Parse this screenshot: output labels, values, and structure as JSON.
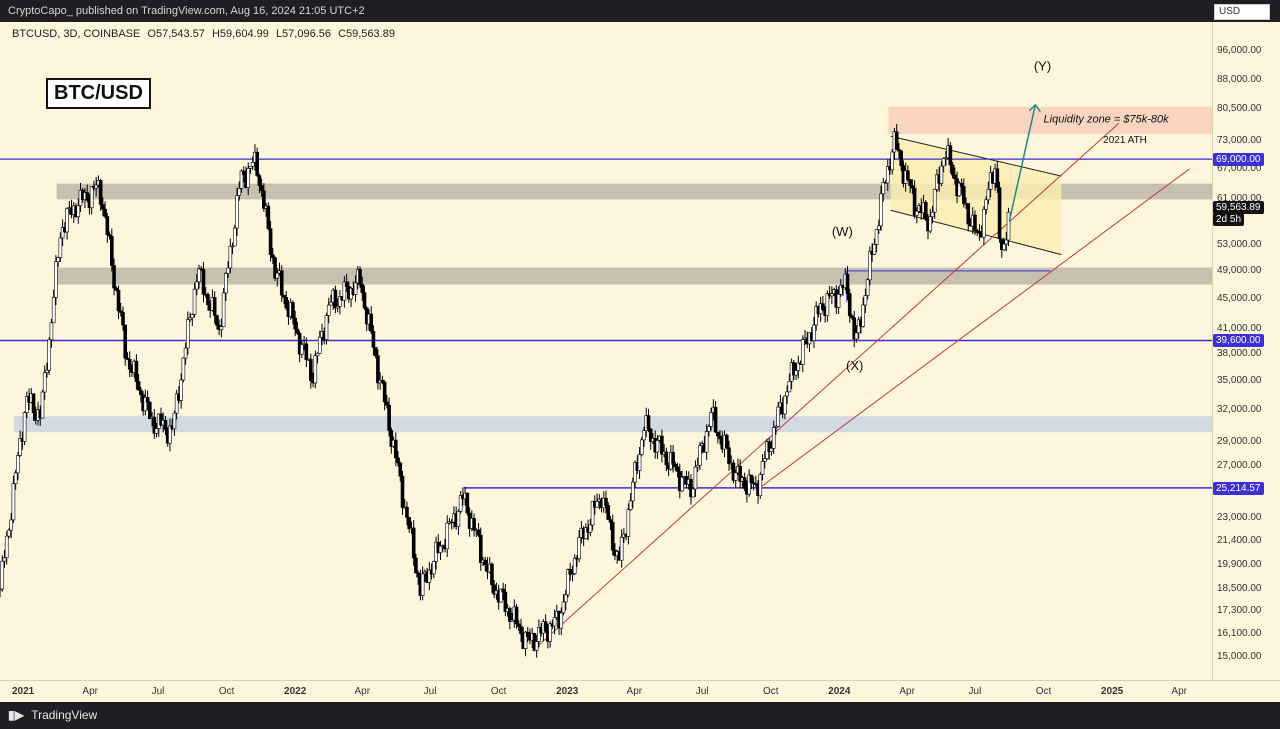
{
  "header": {
    "publisher": "CryptoCapo_ published on TradingView.com, Aug 16, 2024 21:05 UTC+2"
  },
  "footer": {
    "brand": "TradingView"
  },
  "chart": {
    "symbol_line": "BTCUSD, 3D, COINBASE",
    "open": "O57,543.57",
    "high": "H59,604.99",
    "low": "L57,096.56",
    "close": "C59,563.89",
    "title": "BTC/USD",
    "currency": "USD",
    "ath_label": "2021 ATH",
    "zone_label": "Liquidity zone = $75k-80k",
    "wave_w": "(W)",
    "wave_x": "(X)",
    "wave_y": "(Y)",
    "countdown": "2d 5h"
  },
  "price_ticks": [
    "96,000.00",
    "88,000.00",
    "80,500.00",
    "73,000.00",
    "67,000.00",
    "61,000.00",
    "53,000.00",
    "49,000.00",
    "45,000.00",
    "41,000.00",
    "38,000.00",
    "35,000.00",
    "32,000.00",
    "29,000.00",
    "27,000.00",
    "23,000.00",
    "21,400.00",
    "19,900.00",
    "18,500.00",
    "17,300.00",
    "16,100.00",
    "15,000.00"
  ],
  "level_tags": {
    "ath": "69,000.00",
    "mid": "39,600.00",
    "low": "25,214.57",
    "last": "59,563.89"
  },
  "time_ticks": [
    {
      "label": "2021",
      "bold": true
    },
    {
      "label": "Apr",
      "bold": false
    },
    {
      "label": "Jul",
      "bold": false
    },
    {
      "label": "Oct",
      "bold": false
    },
    {
      "label": "2022",
      "bold": true
    },
    {
      "label": "Apr",
      "bold": false
    },
    {
      "label": "Jul",
      "bold": false
    },
    {
      "label": "Oct",
      "bold": false
    },
    {
      "label": "2023",
      "bold": true
    },
    {
      "label": "Apr",
      "bold": false
    },
    {
      "label": "Jul",
      "bold": false
    },
    {
      "label": "Oct",
      "bold": false
    },
    {
      "label": "2024",
      "bold": true
    },
    {
      "label": "Apr",
      "bold": false
    },
    {
      "label": "Jul",
      "bold": false
    },
    {
      "label": "Oct",
      "bold": false
    },
    {
      "label": "2025",
      "bold": true
    },
    {
      "label": "Apr",
      "bold": false
    }
  ],
  "colors": {
    "background": "#fdf5dc",
    "level_line": "#3b2fd6",
    "trendline": "#c0393b",
    "supply_zone": "#b8b3a3",
    "demand_zone": "#c7d3e6",
    "liquidity_zone": "#f7c9b8",
    "channel_fill": "#fbeeb0",
    "projection_arrow": "#1f8a80",
    "candle_up": "#ffffff",
    "candle_down": "#000000"
  },
  "chart_data": {
    "type": "candlestick",
    "symbol": "BTCUSD",
    "timeframe": "3D",
    "exchange": "COINBASE",
    "y_scale": "log",
    "ylim": [
      14000,
      105000
    ],
    "xlim": [
      "2020-12-01",
      "2025-05-15"
    ],
    "last_close": 59563.89,
    "price_path": [
      {
        "date": "2020-12-01",
        "price": 18500
      },
      {
        "date": "2021-01-05",
        "price": 33000
      },
      {
        "date": "2021-01-25",
        "price": 31500
      },
      {
        "date": "2021-02-21",
        "price": 56000
      },
      {
        "date": "2021-03-13",
        "price": 60000
      },
      {
        "date": "2021-04-14",
        "price": 63500
      },
      {
        "date": "2021-05-19",
        "price": 38000
      },
      {
        "date": "2021-06-22",
        "price": 31000
      },
      {
        "date": "2021-07-20",
        "price": 30000
      },
      {
        "date": "2021-08-23",
        "price": 49000
      },
      {
        "date": "2021-09-21",
        "price": 41000
      },
      {
        "date": "2021-10-20",
        "price": 65000
      },
      {
        "date": "2021-11-10",
        "price": 68500
      },
      {
        "date": "2021-12-05",
        "price": 49000
      },
      {
        "date": "2022-01-24",
        "price": 35500
      },
      {
        "date": "2022-02-15",
        "price": 44000
      },
      {
        "date": "2022-03-29",
        "price": 47500
      },
      {
        "date": "2022-05-12",
        "price": 29000
      },
      {
        "date": "2022-06-18",
        "price": 18500
      },
      {
        "date": "2022-08-15",
        "price": 24500
      },
      {
        "date": "2022-09-20",
        "price": 19000
      },
      {
        "date": "2022-11-09",
        "price": 15700
      },
      {
        "date": "2022-12-20",
        "price": 16800
      },
      {
        "date": "2023-01-14",
        "price": 20900
      },
      {
        "date": "2023-02-16",
        "price": 24800
      },
      {
        "date": "2023-03-11",
        "price": 20000
      },
      {
        "date": "2023-04-14",
        "price": 30500
      },
      {
        "date": "2023-06-15",
        "price": 25000
      },
      {
        "date": "2023-07-13",
        "price": 31500
      },
      {
        "date": "2023-08-17",
        "price": 26000
      },
      {
        "date": "2023-09-11",
        "price": 25200
      },
      {
        "date": "2023-10-24",
        "price": 34500
      },
      {
        "date": "2023-12-08",
        "price": 44000
      },
      {
        "date": "2024-01-11",
        "price": 47000
      },
      {
        "date": "2024-01-23",
        "price": 39000
      },
      {
        "date": "2024-02-28",
        "price": 62000
      },
      {
        "date": "2024-03-14",
        "price": 73000
      },
      {
        "date": "2024-04-12",
        "price": 60000
      },
      {
        "date": "2024-05-01",
        "price": 57000
      },
      {
        "date": "2024-05-21",
        "price": 71000
      },
      {
        "date": "2024-07-05",
        "price": 54000
      },
      {
        "date": "2024-07-29",
        "price": 69000
      },
      {
        "date": "2024-08-05",
        "price": 49500
      },
      {
        "date": "2024-08-16",
        "price": 59563.89
      }
    ],
    "horizontal_levels": [
      69000,
      39600,
      25214.57,
      49000
    ],
    "zones": [
      {
        "from": 61000,
        "to": 64000
      },
      {
        "from": 47000,
        "to": 49500
      },
      {
        "from": 29900,
        "to": 31400
      },
      {
        "from": 74500,
        "to": 81000,
        "label": "Liquidity zone = $75k-80k"
      }
    ],
    "annotations": [
      {
        "text": "2021 ATH"
      },
      {
        "text": "(W)"
      },
      {
        "text": "(X)"
      },
      {
        "text": "(Y)"
      },
      {
        "text": "BTC/USD"
      }
    ]
  }
}
